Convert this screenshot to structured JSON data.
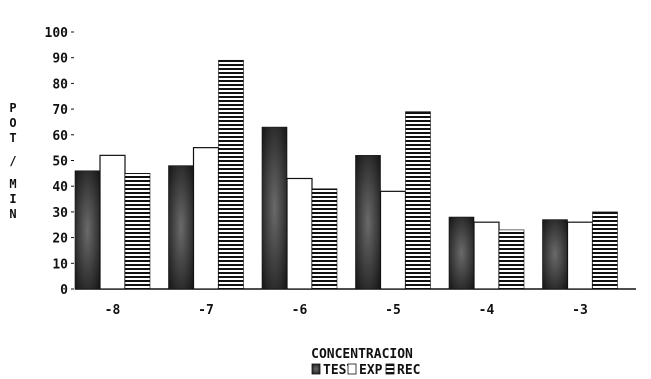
{
  "chart_data": {
    "type": "bar",
    "title": "",
    "xlabel": "CONCENTRACION",
    "ylabel": "POT / MIN",
    "categories": [
      "-8",
      "-7",
      "-6",
      "-5",
      "-4",
      "-3"
    ],
    "yticks": [
      "100",
      "90",
      "80",
      "70",
      "60",
      "50",
      "40",
      "30",
      "20",
      "10",
      "0"
    ],
    "ylim": [
      0,
      100
    ],
    "grid": false,
    "legend_placement": "bottom-center",
    "series": [
      {
        "name": "TEST",
        "values": [
          46,
          48,
          63,
          52,
          28,
          27
        ],
        "color": "#3a3a3a",
        "pattern": "solid-dark"
      },
      {
        "name": "EXP",
        "values": [
          52,
          55,
          43,
          38,
          26,
          26
        ],
        "color": "#ffffff",
        "pattern": "outline"
      },
      {
        "name": "REC",
        "values": [
          45,
          89,
          39,
          69,
          23,
          30
        ],
        "color": "#111111",
        "pattern": "horizontal-stripes"
      }
    ]
  }
}
